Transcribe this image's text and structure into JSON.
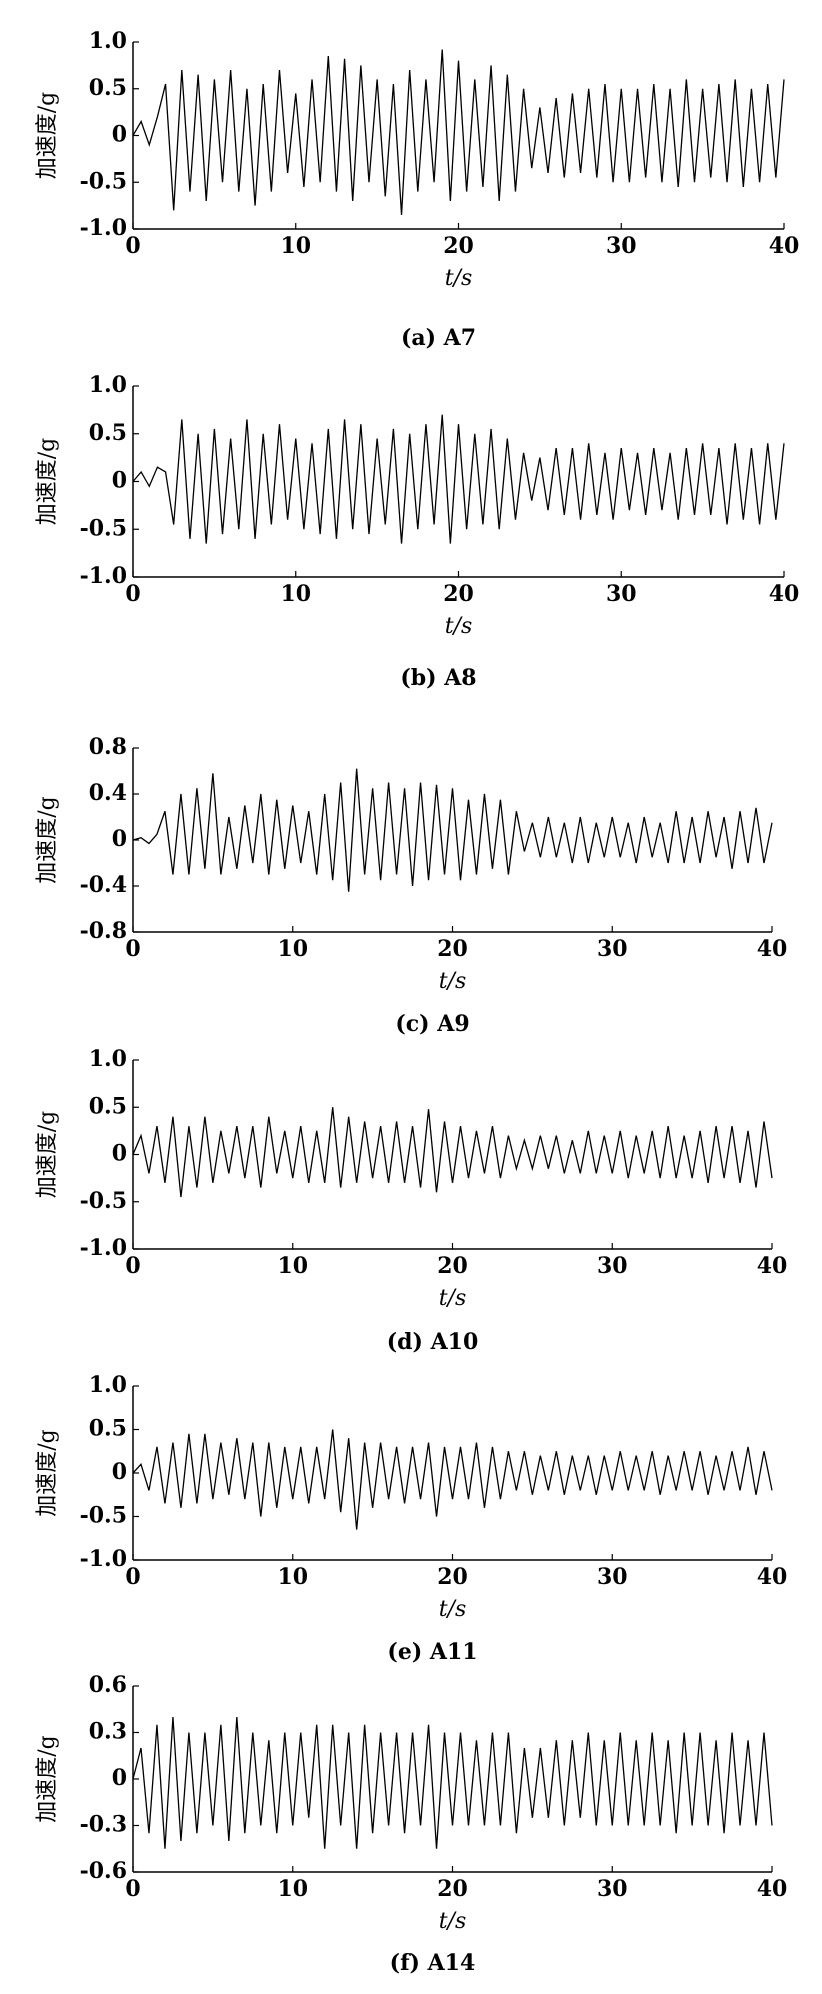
{
  "chart_data": [
    {
      "type": "line",
      "caption": "(a) A7",
      "ylabel": "加速度/g",
      "xlabel": "t/s",
      "x": [
        0,
        0.5,
        1,
        1.5,
        2,
        2.5,
        3,
        3.5,
        4,
        4.5,
        5,
        5.5,
        6,
        6.5,
        7,
        7.5,
        8,
        8.5,
        9,
        9.5,
        10,
        10.5,
        11,
        11.5,
        12,
        12.5,
        13,
        13.5,
        14,
        14.5,
        15,
        15.5,
        16,
        16.5,
        17,
        17.5,
        18,
        18.5,
        19,
        19.5,
        20,
        20.5,
        21,
        21.5,
        22,
        22.5,
        23,
        23.5,
        24,
        24.5,
        25,
        25.5,
        26,
        26.5,
        27,
        27.5,
        28,
        28.5,
        29,
        29.5,
        30,
        30.5,
        31,
        31.5,
        32,
        32.5,
        33,
        33.5,
        34,
        34.5,
        35,
        35.5,
        36,
        36.5,
        37,
        37.5,
        38,
        38.5,
        39,
        39.5,
        40
      ],
      "values": [
        0,
        0.15,
        -0.1,
        0.2,
        0.55,
        -0.8,
        0.7,
        -0.6,
        0.65,
        -0.7,
        0.6,
        -0.5,
        0.7,
        -0.6,
        0.5,
        -0.75,
        0.55,
        -0.6,
        0.7,
        -0.4,
        0.45,
        -0.55,
        0.6,
        -0.5,
        0.85,
        -0.6,
        0.82,
        -0.7,
        0.75,
        -0.5,
        0.6,
        -0.65,
        0.55,
        -0.85,
        0.7,
        -0.6,
        0.6,
        -0.5,
        0.92,
        -0.7,
        0.8,
        -0.6,
        0.6,
        -0.55,
        0.75,
        -0.7,
        0.65,
        -0.6,
        0.5,
        -0.35,
        0.3,
        -0.4,
        0.4,
        -0.45,
        0.45,
        -0.4,
        0.5,
        -0.45,
        0.55,
        -0.5,
        0.5,
        -0.5,
        0.5,
        -0.45,
        0.55,
        -0.5,
        0.5,
        -0.55,
        0.6,
        -0.5,
        0.5,
        -0.45,
        0.55,
        -0.5,
        0.6,
        -0.55,
        0.5,
        -0.5,
        0.55,
        -0.45,
        0.6
      ],
      "color": "#000000",
      "xlim": [
        0,
        40
      ],
      "xticks": [
        0,
        10,
        20,
        30,
        40
      ],
      "ylim": [
        -1,
        1
      ],
      "yticks": [
        {
          "value": -1,
          "label": "-1.0"
        },
        -0.5,
        0,
        0.5,
        {
          "value": 1,
          "label": "1.0"
        }
      ]
    },
    {
      "type": "line",
      "caption": "(b) A8",
      "ylabel": "加速度/g",
      "xlabel": "t/s",
      "x": [
        0,
        0.5,
        1,
        1.5,
        2,
        2.5,
        3,
        3.5,
        4,
        4.5,
        5,
        5.5,
        6,
        6.5,
        7,
        7.5,
        8,
        8.5,
        9,
        9.5,
        10,
        10.5,
        11,
        11.5,
        12,
        12.5,
        13,
        13.5,
        14,
        14.5,
        15,
        15.5,
        16,
        16.5,
        17,
        17.5,
        18,
        18.5,
        19,
        19.5,
        20,
        20.5,
        21,
        21.5,
        22,
        22.5,
        23,
        23.5,
        24,
        24.5,
        25,
        25.5,
        26,
        26.5,
        27,
        27.5,
        28,
        28.5,
        29,
        29.5,
        30,
        30.5,
        31,
        31.5,
        32,
        32.5,
        33,
        33.5,
        34,
        34.5,
        35,
        35.5,
        36,
        36.5,
        37,
        37.5,
        38,
        38.5,
        39,
        39.5,
        40
      ],
      "values": [
        0,
        0.1,
        -0.05,
        0.15,
        0.1,
        -0.45,
        0.65,
        -0.6,
        0.5,
        -0.65,
        0.55,
        -0.55,
        0.45,
        -0.5,
        0.65,
        -0.6,
        0.5,
        -0.45,
        0.6,
        -0.4,
        0.45,
        -0.5,
        0.4,
        -0.55,
        0.55,
        -0.6,
        0.65,
        -0.5,
        0.6,
        -0.55,
        0.45,
        -0.45,
        0.55,
        -0.65,
        0.5,
        -0.5,
        0.6,
        -0.45,
        0.7,
        -0.65,
        0.6,
        -0.5,
        0.5,
        -0.45,
        0.55,
        -0.5,
        0.45,
        -0.4,
        0.3,
        -0.2,
        0.25,
        -0.3,
        0.35,
        -0.35,
        0.35,
        -0.4,
        0.4,
        -0.35,
        0.3,
        -0.4,
        0.35,
        -0.3,
        0.3,
        -0.35,
        0.35,
        -0.3,
        0.3,
        -0.4,
        0.35,
        -0.35,
        0.4,
        -0.35,
        0.35,
        -0.45,
        0.4,
        -0.4,
        0.35,
        -0.45,
        0.4,
        -0.4,
        0.4
      ],
      "color": "#000000",
      "xlim": [
        0,
        40
      ],
      "xticks": [
        0,
        10,
        20,
        30,
        40
      ],
      "ylim": [
        -1,
        1
      ],
      "yticks": [
        {
          "value": -1,
          "label": "-1.0"
        },
        -0.5,
        0,
        0.5,
        {
          "value": 1,
          "label": "1.0"
        }
      ]
    },
    {
      "type": "line",
      "caption": "(c) A9",
      "ylabel": "加速度/g",
      "xlabel": "t/s",
      "x": [
        0,
        0.5,
        1,
        1.5,
        2,
        2.5,
        3,
        3.5,
        4,
        4.5,
        5,
        5.5,
        6,
        6.5,
        7,
        7.5,
        8,
        8.5,
        9,
        9.5,
        10,
        10.5,
        11,
        11.5,
        12,
        12.5,
        13,
        13.5,
        14,
        14.5,
        15,
        15.5,
        16,
        16.5,
        17,
        17.5,
        18,
        18.5,
        19,
        19.5,
        20,
        20.5,
        21,
        21.5,
        22,
        22.5,
        23,
        23.5,
        24,
        24.5,
        25,
        25.5,
        26,
        26.5,
        27,
        27.5,
        28,
        28.5,
        29,
        29.5,
        30,
        30.5,
        31,
        31.5,
        32,
        32.5,
        33,
        33.5,
        34,
        34.5,
        35,
        35.5,
        36,
        36.5,
        37,
        37.5,
        38,
        38.5,
        39,
        39.5,
        40
      ],
      "values": [
        0,
        0.02,
        -0.03,
        0.05,
        0.25,
        -0.3,
        0.4,
        -0.3,
        0.45,
        -0.25,
        0.58,
        -0.3,
        0.2,
        -0.25,
        0.3,
        -0.2,
        0.4,
        -0.3,
        0.35,
        -0.25,
        0.3,
        -0.2,
        0.25,
        -0.3,
        0.4,
        -0.35,
        0.5,
        -0.45,
        0.62,
        -0.3,
        0.45,
        -0.35,
        0.5,
        -0.3,
        0.45,
        -0.4,
        0.5,
        -0.35,
        0.48,
        -0.3,
        0.45,
        -0.35,
        0.35,
        -0.3,
        0.4,
        -0.25,
        0.35,
        -0.3,
        0.25,
        -0.1,
        0.15,
        -0.15,
        0.2,
        -0.15,
        0.15,
        -0.2,
        0.2,
        -0.2,
        0.15,
        -0.15,
        0.2,
        -0.15,
        0.15,
        -0.2,
        0.2,
        -0.15,
        0.15,
        -0.2,
        0.25,
        -0.2,
        0.2,
        -0.2,
        0.25,
        -0.15,
        0.2,
        -0.25,
        0.25,
        -0.2,
        0.28,
        -0.2,
        0.15
      ],
      "color": "#000000",
      "xlim": [
        0,
        40
      ],
      "xticks": [
        0,
        10,
        20,
        30,
        40
      ],
      "ylim": [
        -0.8,
        0.8
      ],
      "yticks": [
        -0.8,
        -0.4,
        0,
        0.4,
        0.8
      ]
    },
    {
      "type": "line",
      "caption": "(d) A10",
      "ylabel": "加速度/g",
      "xlabel": "t/s",
      "x": [
        0,
        0.5,
        1,
        1.5,
        2,
        2.5,
        3,
        3.5,
        4,
        4.5,
        5,
        5.5,
        6,
        6.5,
        7,
        7.5,
        8,
        8.5,
        9,
        9.5,
        10,
        10.5,
        11,
        11.5,
        12,
        12.5,
        13,
        13.5,
        14,
        14.5,
        15,
        15.5,
        16,
        16.5,
        17,
        17.5,
        18,
        18.5,
        19,
        19.5,
        20,
        20.5,
        21,
        21.5,
        22,
        22.5,
        23,
        23.5,
        24,
        24.5,
        25,
        25.5,
        26,
        26.5,
        27,
        27.5,
        28,
        28.5,
        29,
        29.5,
        30,
        30.5,
        31,
        31.5,
        32,
        32.5,
        33,
        33.5,
        34,
        34.5,
        35,
        35.5,
        36,
        36.5,
        37,
        37.5,
        38,
        38.5,
        39,
        39.5,
        40
      ],
      "values": [
        0,
        0.2,
        -0.2,
        0.3,
        -0.3,
        0.4,
        -0.45,
        0.3,
        -0.35,
        0.4,
        -0.3,
        0.25,
        -0.2,
        0.3,
        -0.25,
        0.3,
        -0.35,
        0.4,
        -0.2,
        0.25,
        -0.25,
        0.3,
        -0.3,
        0.25,
        -0.3,
        0.5,
        -0.35,
        0.4,
        -0.3,
        0.35,
        -0.25,
        0.3,
        -0.3,
        0.35,
        -0.3,
        0.3,
        -0.35,
        0.48,
        -0.4,
        0.35,
        -0.3,
        0.3,
        -0.25,
        0.25,
        -0.2,
        0.3,
        -0.25,
        0.2,
        -0.15,
        0.15,
        -0.15,
        0.2,
        -0.15,
        0.2,
        -0.2,
        0.15,
        -0.2,
        0.25,
        -0.2,
        0.2,
        -0.2,
        0.25,
        -0.25,
        0.2,
        -0.2,
        0.25,
        -0.25,
        0.3,
        -0.25,
        0.2,
        -0.25,
        0.25,
        -0.3,
        0.3,
        -0.25,
        0.3,
        -0.3,
        0.25,
        -0.35,
        0.35,
        -0.25
      ],
      "color": "#000000",
      "xlim": [
        0,
        40
      ],
      "xticks": [
        0,
        10,
        20,
        30,
        40
      ],
      "ylim": [
        -1,
        1
      ],
      "yticks": [
        {
          "value": -1,
          "label": "-1.0"
        },
        -0.5,
        0,
        0.5,
        {
          "value": 1,
          "label": "1.0"
        }
      ]
    },
    {
      "type": "line",
      "caption": "(e) A11",
      "ylabel": "加速度/g",
      "xlabel": "t/s",
      "x": [
        0,
        0.5,
        1,
        1.5,
        2,
        2.5,
        3,
        3.5,
        4,
        4.5,
        5,
        5.5,
        6,
        6.5,
        7,
        7.5,
        8,
        8.5,
        9,
        9.5,
        10,
        10.5,
        11,
        11.5,
        12,
        12.5,
        13,
        13.5,
        14,
        14.5,
        15,
        15.5,
        16,
        16.5,
        17,
        17.5,
        18,
        18.5,
        19,
        19.5,
        20,
        20.5,
        21,
        21.5,
        22,
        22.5,
        23,
        23.5,
        24,
        24.5,
        25,
        25.5,
        26,
        26.5,
        27,
        27.5,
        28,
        28.5,
        29,
        29.5,
        30,
        30.5,
        31,
        31.5,
        32,
        32.5,
        33,
        33.5,
        34,
        34.5,
        35,
        35.5,
        36,
        36.5,
        37,
        37.5,
        38,
        38.5,
        39,
        39.5,
        40
      ],
      "values": [
        0,
        0.1,
        -0.2,
        0.3,
        -0.35,
        0.35,
        -0.4,
        0.45,
        -0.35,
        0.45,
        -0.3,
        0.35,
        -0.25,
        0.4,
        -0.3,
        0.35,
        -0.5,
        0.35,
        -0.4,
        0.3,
        -0.3,
        0.3,
        -0.35,
        0.3,
        -0.3,
        0.5,
        -0.45,
        0.4,
        -0.65,
        0.35,
        -0.4,
        0.35,
        -0.3,
        0.3,
        -0.35,
        0.3,
        -0.3,
        0.35,
        -0.5,
        0.3,
        -0.3,
        0.3,
        -0.3,
        0.35,
        -0.4,
        0.3,
        -0.3,
        0.25,
        -0.2,
        0.25,
        -0.25,
        0.2,
        -0.2,
        0.25,
        -0.25,
        0.2,
        -0.2,
        0.2,
        -0.25,
        0.2,
        -0.2,
        0.25,
        -0.2,
        0.2,
        -0.2,
        0.25,
        -0.25,
        0.2,
        -0.2,
        0.25,
        -0.2,
        0.25,
        -0.25,
        0.2,
        -0.2,
        0.25,
        -0.2,
        0.3,
        -0.25,
        0.25,
        -0.2
      ],
      "color": "#000000",
      "xlim": [
        0,
        40
      ],
      "xticks": [
        0,
        10,
        20,
        30,
        40
      ],
      "ylim": [
        -1,
        1
      ],
      "yticks": [
        {
          "value": -1,
          "label": "-1.0"
        },
        -0.5,
        0,
        0.5,
        {
          "value": 1,
          "label": "1.0"
        }
      ]
    },
    {
      "type": "line",
      "caption": "(f) A14",
      "ylabel": "加速度/g",
      "xlabel": "t/s",
      "x": [
        0,
        0.5,
        1,
        1.5,
        2,
        2.5,
        3,
        3.5,
        4,
        4.5,
        5,
        5.5,
        6,
        6.5,
        7,
        7.5,
        8,
        8.5,
        9,
        9.5,
        10,
        10.5,
        11,
        11.5,
        12,
        12.5,
        13,
        13.5,
        14,
        14.5,
        15,
        15.5,
        16,
        16.5,
        17,
        17.5,
        18,
        18.5,
        19,
        19.5,
        20,
        20.5,
        21,
        21.5,
        22,
        22.5,
        23,
        23.5,
        24,
        24.5,
        25,
        25.5,
        26,
        26.5,
        27,
        27.5,
        28,
        28.5,
        29,
        29.5,
        30,
        30.5,
        31,
        31.5,
        32,
        32.5,
        33,
        33.5,
        34,
        34.5,
        35,
        35.5,
        36,
        36.5,
        37,
        37.5,
        38,
        38.5,
        39,
        39.5,
        40
      ],
      "values": [
        0,
        0.2,
        -0.35,
        0.35,
        -0.45,
        0.4,
        -0.4,
        0.3,
        -0.35,
        0.3,
        -0.3,
        0.35,
        -0.4,
        0.4,
        -0.35,
        0.3,
        -0.3,
        0.25,
        -0.35,
        0.3,
        -0.3,
        0.3,
        -0.25,
        0.35,
        -0.45,
        0.35,
        -0.3,
        0.3,
        -0.45,
        0.35,
        -0.35,
        0.3,
        -0.3,
        0.3,
        -0.35,
        0.3,
        -0.3,
        0.35,
        -0.45,
        0.3,
        -0.3,
        0.3,
        -0.3,
        0.25,
        -0.3,
        0.3,
        -0.3,
        0.3,
        -0.35,
        0.2,
        -0.25,
        0.2,
        -0.25,
        0.25,
        -0.3,
        0.25,
        -0.25,
        0.3,
        -0.3,
        0.25,
        -0.3,
        0.3,
        -0.3,
        0.25,
        -0.3,
        0.3,
        -0.3,
        0.25,
        -0.35,
        0.3,
        -0.3,
        0.3,
        -0.3,
        0.25,
        -0.35,
        0.3,
        -0.3,
        0.25,
        -0.3,
        0.3,
        -0.3
      ],
      "color": "#000000",
      "xlim": [
        0,
        40
      ],
      "xticks": [
        0,
        10,
        20,
        30,
        40
      ],
      "ylim": [
        -0.6,
        0.6
      ],
      "yticks": [
        -0.6,
        -0.3,
        0,
        0.3,
        0.6
      ]
    }
  ]
}
